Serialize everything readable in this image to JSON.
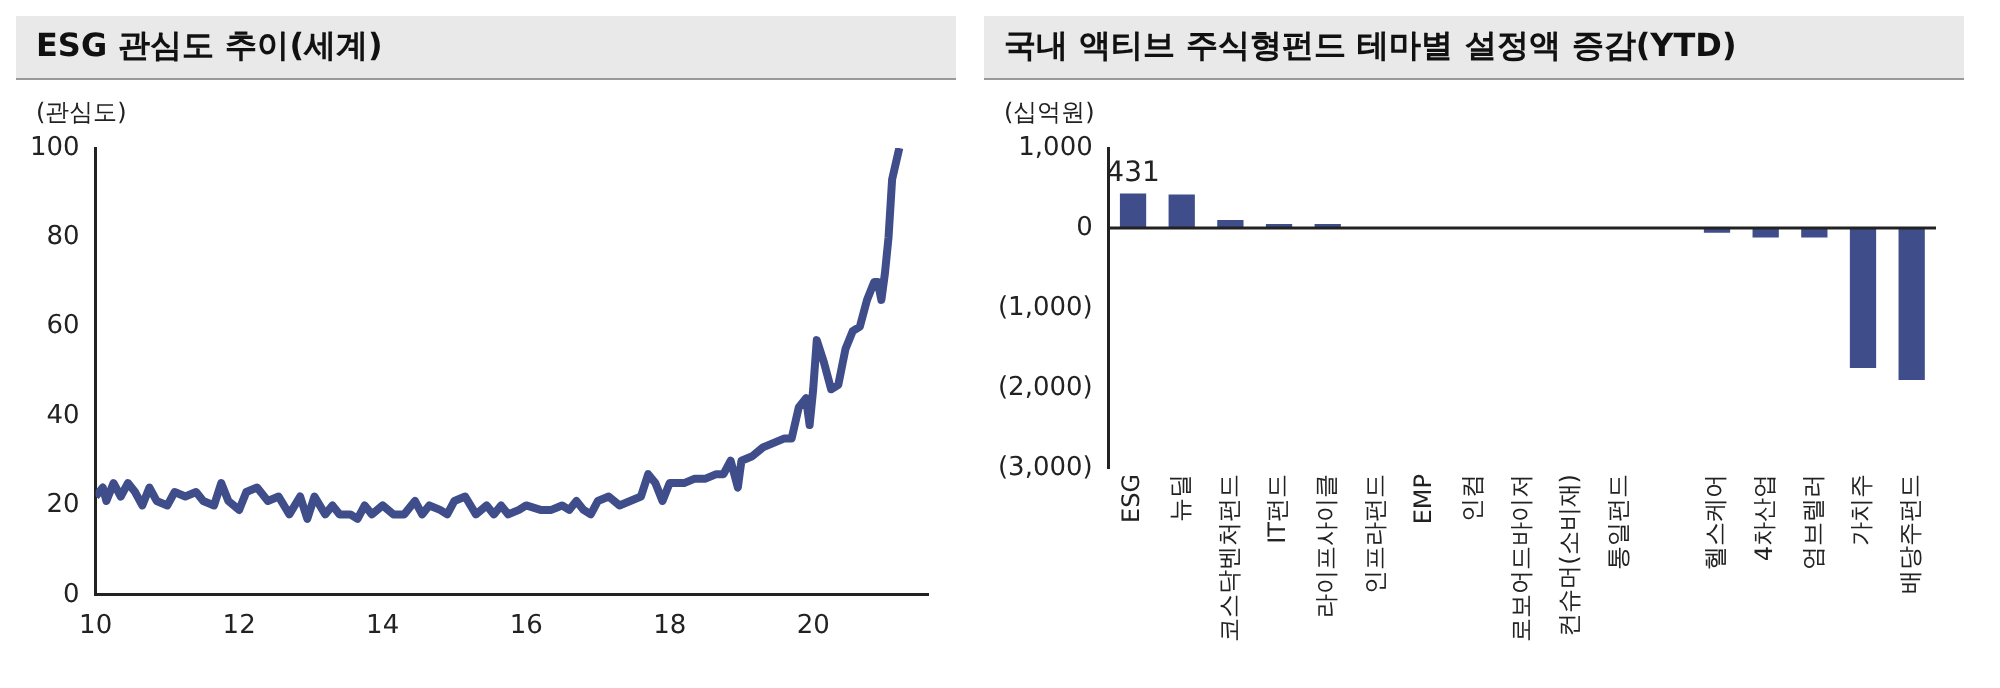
{
  "chart_data": [
    {
      "type": "line",
      "title": "ESG 관심도 추이(세계)",
      "ylabel": "(관심도)",
      "xlim": [
        10,
        21.6
      ],
      "xticks": [
        10,
        12,
        14,
        16,
        18,
        20
      ],
      "ylim": [
        0,
        100
      ],
      "yticks": [
        0,
        20,
        40,
        60,
        80,
        100
      ],
      "grid": false,
      "legend": false,
      "marker": "none",
      "line_style": "solid",
      "series": [
        {
          "color": "#3f4d8a",
          "x": [
            10.0,
            10.1,
            10.15,
            10.25,
            10.35,
            10.45,
            10.55,
            10.65,
            10.75,
            10.85,
            11.0,
            11.1,
            11.25,
            11.4,
            11.5,
            11.65,
            11.75,
            11.85,
            12.0,
            12.1,
            12.25,
            12.4,
            12.55,
            12.7,
            12.85,
            12.95,
            13.05,
            13.2,
            13.3,
            13.4,
            13.55,
            13.65,
            13.75,
            13.85,
            14.0,
            14.15,
            14.3,
            14.45,
            14.55,
            14.65,
            14.8,
            14.9,
            15.0,
            15.15,
            15.3,
            15.45,
            15.55,
            15.65,
            15.75,
            15.9,
            16.0,
            16.2,
            16.35,
            16.5,
            16.6,
            16.7,
            16.8,
            16.9,
            17.0,
            17.15,
            17.3,
            17.45,
            17.6,
            17.7,
            17.8,
            17.9,
            18.0,
            18.2,
            18.35,
            18.5,
            18.65,
            18.75,
            18.85,
            18.95,
            19.0,
            19.15,
            19.3,
            19.45,
            19.6,
            19.7,
            19.8,
            19.9,
            19.95,
            20.0,
            20.05,
            20.15,
            20.25,
            20.35,
            20.45,
            20.55,
            20.65,
            20.75,
            20.85,
            20.9,
            20.95,
            21.0,
            21.05,
            21.1,
            21.2
          ],
          "values": [
            22,
            24,
            21,
            25,
            22,
            25,
            23,
            20,
            24,
            21,
            20,
            23,
            22,
            23,
            21,
            20,
            25,
            21,
            19,
            23,
            24,
            21,
            22,
            18,
            22,
            17,
            22,
            18,
            20,
            18,
            18,
            17,
            20,
            18,
            20,
            18,
            18,
            21,
            18,
            20,
            19,
            18,
            21,
            22,
            18,
            20,
            18,
            20,
            18,
            19,
            20,
            19,
            19,
            20,
            19,
            21,
            19,
            18,
            21,
            22,
            20,
            21,
            22,
            27,
            25,
            21,
            25,
            25,
            26,
            26,
            27,
            27,
            30,
            24,
            30,
            31,
            33,
            34,
            35,
            35,
            42,
            44,
            38,
            46,
            57,
            52,
            46,
            47,
            55,
            59,
            60,
            66,
            70,
            70,
            66,
            72,
            80,
            93,
            100
          ]
        }
      ]
    },
    {
      "type": "bar",
      "title": "국내 액티브 주식형펀드 테마별 설정액 증감(YTD)",
      "ylabel": "(십억원)",
      "ylim": [
        -3000,
        1000
      ],
      "grid": false,
      "ref_lines": [
        {
          "axis": "y",
          "value": 0,
          "color": "#222222"
        }
      ],
      "legend": false,
      "yticks": [
        {
          "value": 1000,
          "label": "1,000"
        },
        0,
        {
          "value": -1000,
          "label": "(1,000)"
        },
        {
          "value": -2000,
          "label": "(2,000)"
        },
        {
          "value": -3000,
          "label": "(3,000)"
        }
      ],
      "categories": [
        "ESG",
        "뉴딜",
        "코스닥벤처펀드",
        "IT펀드",
        "라이프사이클",
        "인프라펀드",
        "EMP",
        "인컴",
        "로보어드바이저",
        "컨슈머(소비재)",
        "통일펀드",
        null,
        "헬스케어",
        "4차산업",
        "엄브렐러",
        "가치주",
        "배당주펀드"
      ],
      "series": [
        {
          "color": "#3f4d8a",
          "values": [
            431,
            420,
            100,
            50,
            50,
            0,
            0,
            0,
            0,
            0,
            0,
            0,
            -60,
            -120,
            -120,
            -1750,
            -1900
          ],
          "value_labels": [
            "431",
            null,
            null,
            null,
            null,
            null,
            null,
            null,
            null,
            null,
            null,
            null,
            null,
            null,
            null,
            null,
            null
          ]
        }
      ]
    }
  ]
}
